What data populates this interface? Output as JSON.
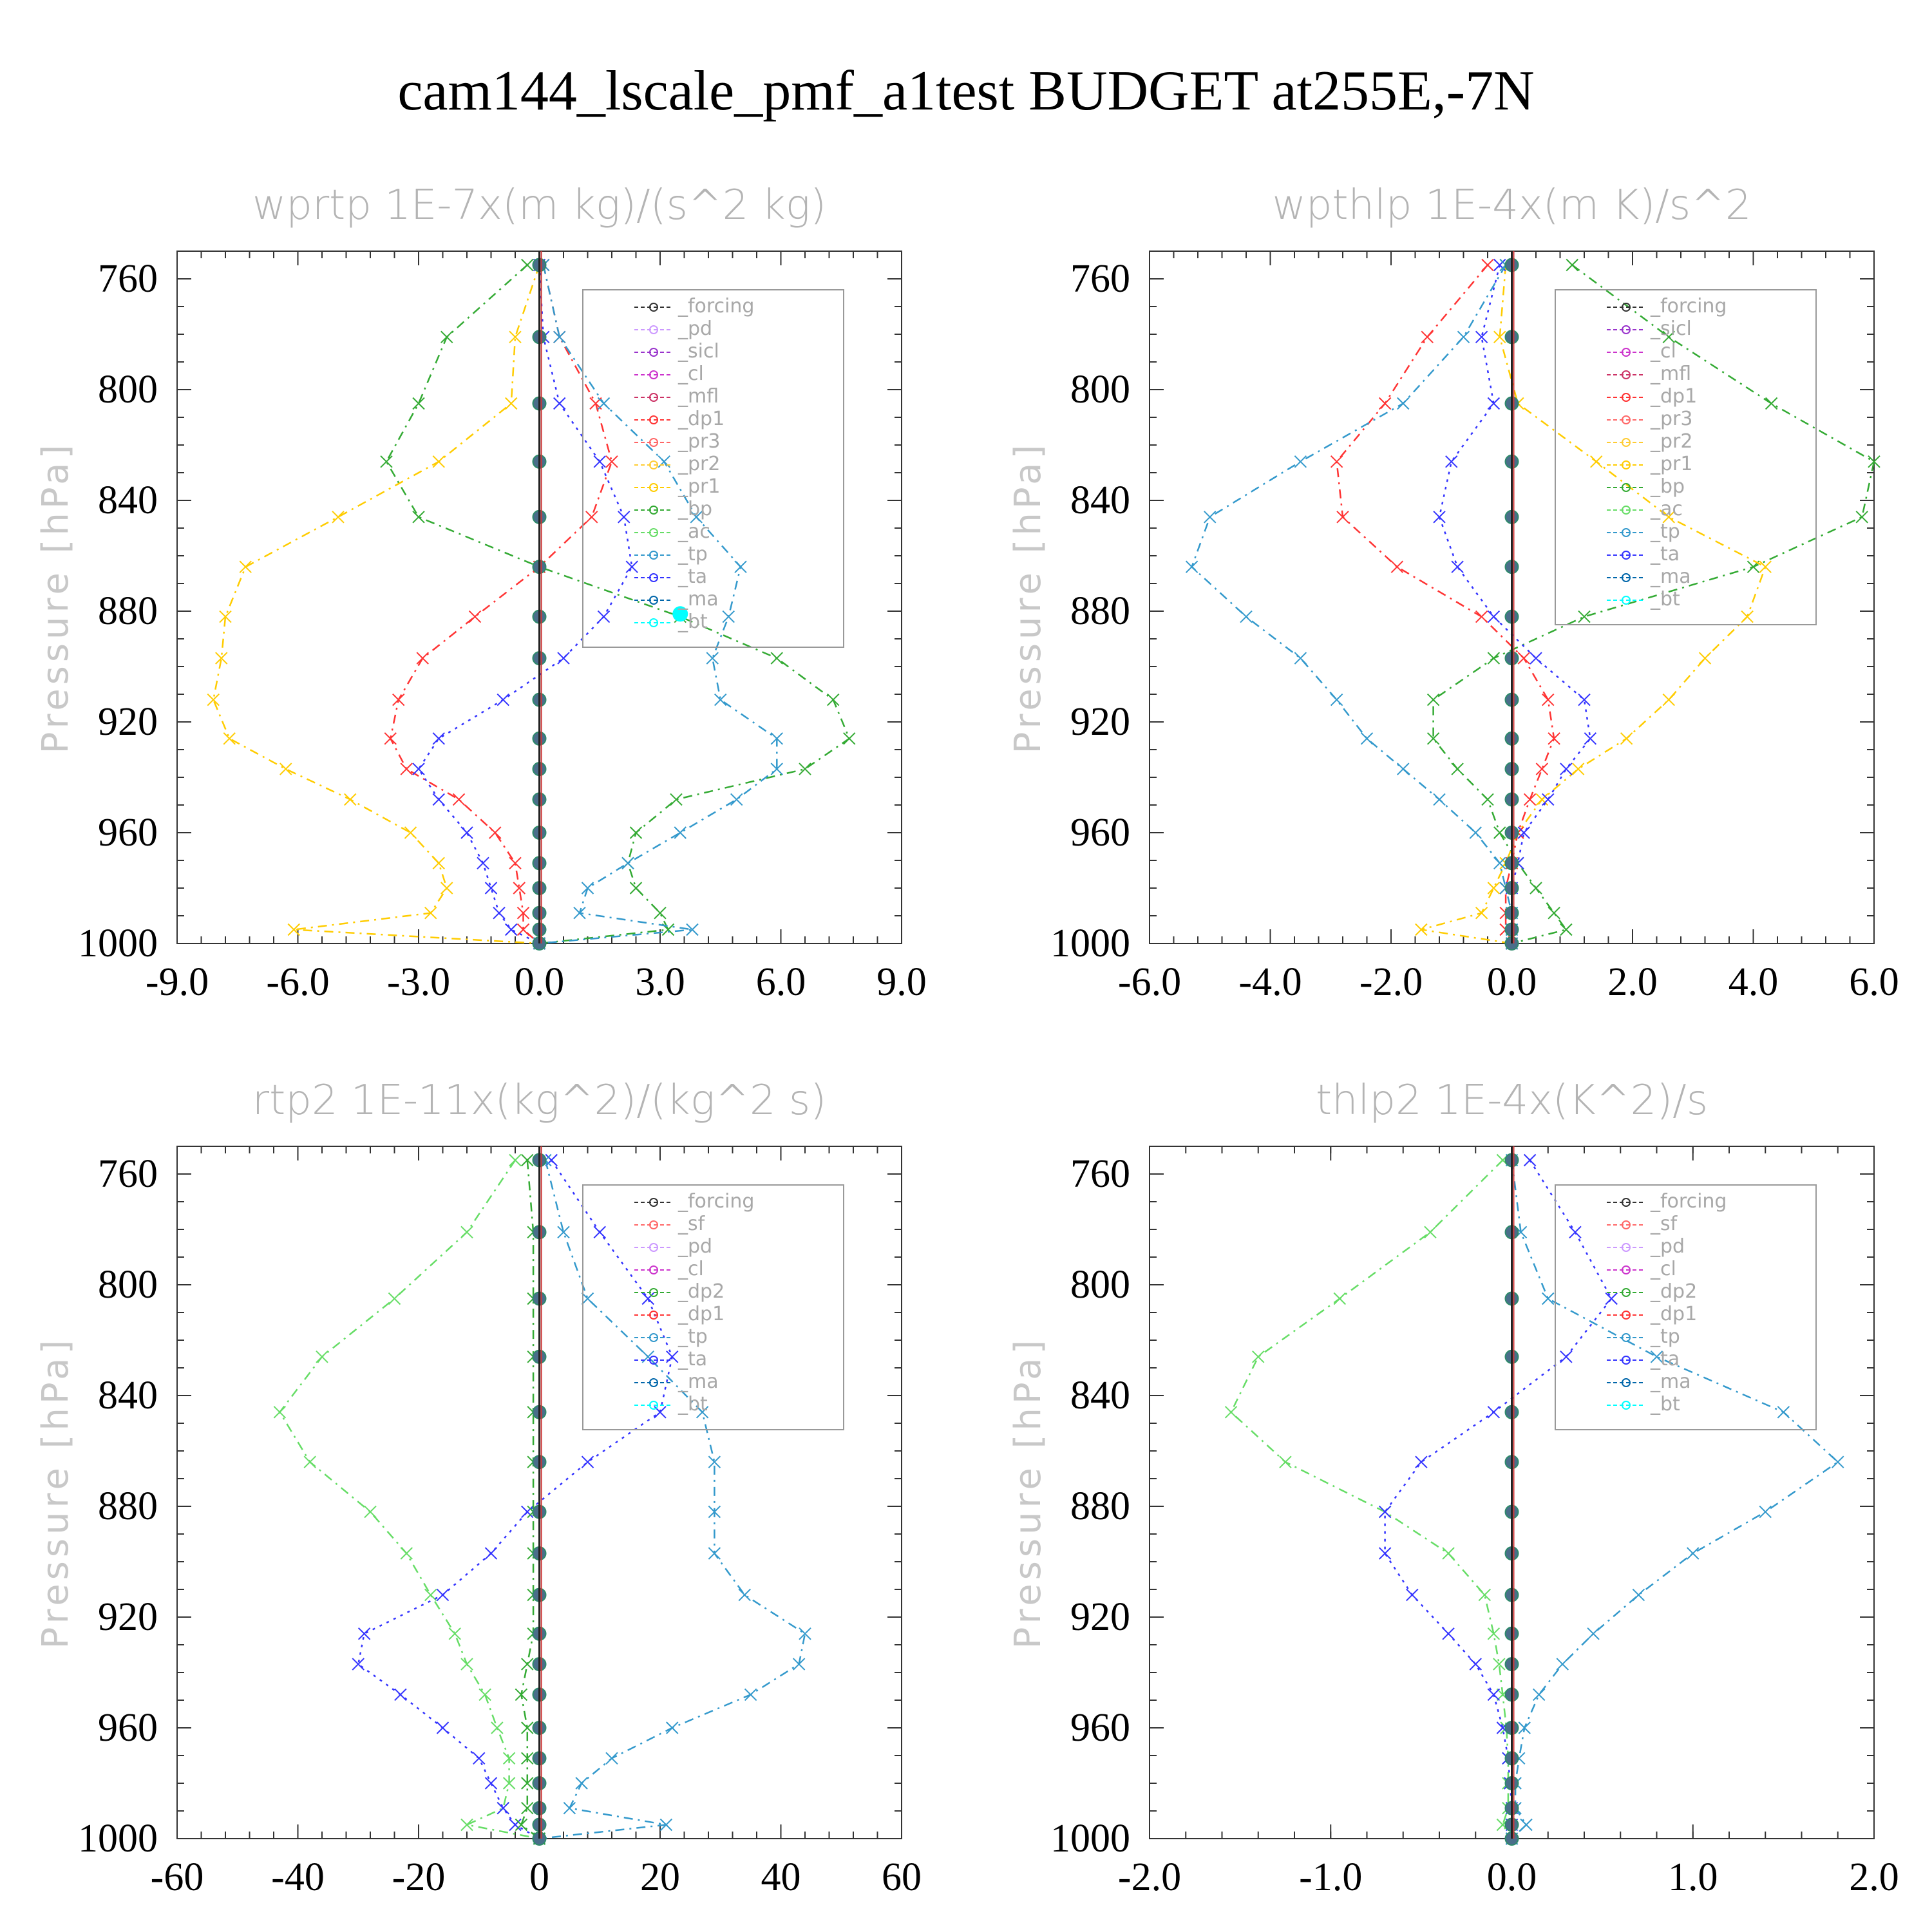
{
  "main_title": "cam144_lscale_pmf_a1test  BUDGET at255E,-7N",
  "colors": {
    "forcing": "#333333",
    "pd": "#cc99ff",
    "sicl": "#9933cc",
    "cl": "#cc33cc",
    "mfl": "#cc3366",
    "dp1": "#ff3333",
    "pr3": "#ff6666",
    "pr2": "#ffcc33",
    "pr1": "#ffcc00",
    "bp": "#33aa33",
    "ac": "#66dd66",
    "tp": "#3399cc",
    "ta": "#3333ff",
    "ma": "#0066aa",
    "bt": "#00ffff",
    "sf": "#ff6666",
    "dp2": "#33aa33"
  },
  "chart_data": [
    {
      "type": "line",
      "title": "wprtp  1E-7x(m kg)/(s^2 kg)",
      "ylabel": "Pressure [hPa]",
      "xlim": [
        -9,
        9
      ],
      "ylim": [
        1000,
        750
      ],
      "xticks": [
        "-9.0",
        "-6.0",
        "-3.0",
        "0.0",
        "3.0",
        "6.0",
        "9.0"
      ],
      "xtick_values": [
        -9,
        -6,
        -3,
        0,
        3,
        6,
        9
      ],
      "yticks": [
        "760",
        "800",
        "840",
        "880",
        "920",
        "960",
        "1000"
      ],
      "ytick_values": [
        760,
        800,
        840,
        880,
        920,
        960,
        1000
      ],
      "y": [
        755,
        781,
        805,
        826,
        846,
        864,
        882,
        897,
        912,
        926,
        937,
        948,
        960,
        971,
        980,
        989,
        995,
        1000
      ],
      "legend": [
        "_forcing",
        "_pd",
        "_sicl",
        "_cl",
        "_mfl",
        "_dp1",
        "_pr3",
        "_pr2",
        "_pr1",
        "_bp",
        "_ac",
        "_tp",
        "_ta",
        "_ma",
        "_bt"
      ],
      "series": [
        {
          "name": "_bp",
          "key": "bp",
          "dash": "14,8,3,8",
          "x": [
            -0.3,
            -2.3,
            -3.0,
            -3.8,
            -3.0,
            0.0,
            3.5,
            5.9,
            7.3,
            7.7,
            6.6,
            3.4,
            2.4,
            2.2,
            2.4,
            3.0,
            3.2,
            0.0
          ]
        },
        {
          "name": "_pr1",
          "key": "pr1",
          "dash": "14,8,3,8",
          "x": [
            0.0,
            -0.6,
            -0.7,
            -2.5,
            -5.0,
            -7.3,
            -7.8,
            -7.9,
            -8.1,
            -7.7,
            -6.3,
            -4.7,
            -3.2,
            -2.5,
            -2.3,
            -2.7,
            -6.1,
            0.0
          ]
        },
        {
          "name": "_dp1",
          "key": "dp1",
          "dash": "14,8,3,8",
          "x": [
            0.1,
            0.5,
            1.4,
            1.8,
            1.3,
            0.0,
            -1.6,
            -2.9,
            -3.5,
            -3.7,
            -3.3,
            -2.0,
            -1.1,
            -0.6,
            -0.5,
            -0.4,
            -0.4,
            0.0
          ]
        },
        {
          "name": "_ta",
          "key": "ta",
          "dash": "4,8",
          "x": [
            0.0,
            0.1,
            0.5,
            1.5,
            2.1,
            2.3,
            1.6,
            0.6,
            -0.9,
            -2.5,
            -3.0,
            -2.5,
            -1.8,
            -1.4,
            -1.2,
            -1.0,
            -0.7,
            0.0
          ]
        },
        {
          "name": "_tp",
          "key": "tp",
          "dash": "14,8,3,8",
          "x": [
            0.1,
            0.5,
            1.6,
            3.1,
            3.9,
            5.0,
            4.7,
            4.3,
            4.5,
            5.9,
            5.9,
            4.9,
            3.5,
            2.2,
            1.2,
            1.0,
            3.8,
            0.0
          ]
        },
        {
          "name": "_forcing",
          "key": "forcing",
          "dash": "none",
          "x": [
            0,
            0,
            0,
            0,
            0,
            0,
            0,
            0,
            0,
            0,
            0,
            0,
            0,
            0,
            0,
            0,
            0,
            0
          ]
        }
      ],
      "bt_marker": {
        "x": 3.5,
        "y": 881
      }
    },
    {
      "type": "line",
      "title": "wpthlp  1E-4x(m K)/s^2",
      "ylabel": "Pressure [hPa]",
      "xlim": [
        -6,
        6
      ],
      "ylim": [
        1000,
        750
      ],
      "xticks": [
        "-6.0",
        "-4.0",
        "-2.0",
        "0.0",
        "2.0",
        "4.0",
        "6.0"
      ],
      "xtick_values": [
        -6,
        -4,
        -2,
        0,
        2,
        4,
        6
      ],
      "yticks": [
        "760",
        "800",
        "840",
        "880",
        "920",
        "960",
        "1000"
      ],
      "ytick_values": [
        760,
        800,
        840,
        880,
        920,
        960,
        1000
      ],
      "y": [
        755,
        781,
        805,
        826,
        846,
        864,
        882,
        897,
        912,
        926,
        937,
        948,
        960,
        971,
        980,
        989,
        995,
        1000
      ],
      "legend": [
        "_forcing",
        "_sicl",
        "_cl",
        "_mfl",
        "_dp1",
        "_pr3",
        "_pr2",
        "_pr1",
        "_bp",
        "_ac",
        "_tp",
        "_ta",
        "_ma",
        "_bt"
      ],
      "series": [
        {
          "name": "_bp",
          "key": "bp",
          "dash": "14,8,3,8",
          "x": [
            1.0,
            2.6,
            4.3,
            6.0,
            5.8,
            4.0,
            1.2,
            -0.3,
            -1.3,
            -1.3,
            -0.9,
            -0.4,
            -0.2,
            0.1,
            0.4,
            0.7,
            0.9,
            0.0
          ]
        },
        {
          "name": "_pr1",
          "key": "pr1",
          "dash": "14,8,3,8",
          "x": [
            -0.1,
            -0.2,
            0.1,
            1.4,
            2.6,
            4.2,
            3.9,
            3.2,
            2.6,
            1.9,
            1.1,
            0.5,
            0.1,
            -0.1,
            -0.3,
            -0.5,
            -1.5,
            0.0
          ]
        },
        {
          "name": "_dp1",
          "key": "dp1",
          "dash": "14,8,3,8",
          "x": [
            -0.4,
            -1.4,
            -2.1,
            -2.9,
            -2.8,
            -1.9,
            -0.5,
            0.2,
            0.6,
            0.7,
            0.5,
            0.3,
            0.1,
            0.0,
            -0.1,
            -0.1,
            -0.1,
            0.0
          ]
        },
        {
          "name": "_ta",
          "key": "ta",
          "dash": "4,8",
          "x": [
            -0.2,
            -0.5,
            -0.3,
            -1.0,
            -1.2,
            -0.9,
            -0.3,
            0.4,
            1.2,
            1.3,
            0.9,
            0.6,
            0.2,
            0.1,
            0.0,
            0.0,
            0.0,
            0.0
          ]
        },
        {
          "name": "_tp",
          "key": "tp",
          "dash": "14,8,3,8",
          "x": [
            -0.1,
            -0.8,
            -1.8,
            -3.5,
            -5.0,
            -5.3,
            -4.4,
            -3.5,
            -2.9,
            -2.4,
            -1.8,
            -1.2,
            -0.6,
            -0.2,
            -0.1,
            0.0,
            0.0,
            0.0
          ]
        },
        {
          "name": "_forcing",
          "key": "forcing",
          "dash": "none",
          "x": [
            0,
            0,
            0,
            0,
            0,
            0,
            0,
            0,
            0,
            0,
            0,
            0,
            0,
            0,
            0,
            0,
            0,
            0
          ]
        }
      ]
    },
    {
      "type": "line",
      "title": "rtp2  1E-11x(kg^2)/(kg^2 s)",
      "ylabel": "Pressure [hPa]",
      "xlim": [
        -60,
        60
      ],
      "ylim": [
        1000,
        750
      ],
      "xticks": [
        "-60",
        "-40",
        "-20",
        "0",
        "20",
        "40",
        "60"
      ],
      "xtick_values": [
        -60,
        -40,
        -20,
        0,
        20,
        40,
        60
      ],
      "yticks": [
        "760",
        "800",
        "840",
        "880",
        "920",
        "960",
        "1000"
      ],
      "ytick_values": [
        760,
        800,
        840,
        880,
        920,
        960,
        1000
      ],
      "y": [
        755,
        781,
        805,
        826,
        846,
        864,
        882,
        897,
        912,
        926,
        937,
        948,
        960,
        971,
        980,
        989,
        995,
        1000
      ],
      "legend": [
        "_forcing",
        "_sf",
        "_pd",
        "_cl",
        "_dp2",
        "_dp1",
        "_tp",
        "_ta",
        "_ma",
        "_bt"
      ],
      "series": [
        {
          "name": "_dp1",
          "key": "ac",
          "dash": "14,8,3,8",
          "x": [
            -4,
            -12,
            -24,
            -36,
            -43,
            -38,
            -28,
            -22,
            -18,
            -14,
            -12,
            -9,
            -7,
            -5,
            -5,
            -6,
            -12,
            0
          ]
        },
        {
          "name": "_ta",
          "key": "ta",
          "dash": "4,8",
          "x": [
            2,
            10,
            18,
            22,
            20,
            8,
            -2,
            -8,
            -16,
            -29,
            -30,
            -23,
            -16,
            -10,
            -8,
            -6,
            -4,
            0
          ]
        },
        {
          "name": "_tp",
          "key": "tp",
          "dash": "14,8,3,8",
          "x": [
            1,
            4,
            8,
            18,
            27,
            29,
            29,
            29,
            34,
            44,
            43,
            35,
            22,
            12,
            7,
            5,
            21,
            0
          ]
        },
        {
          "name": "_dp2",
          "key": "dp2",
          "dash": "14,8,3,8",
          "x": [
            -2,
            -1,
            -1,
            -1,
            -1,
            -1,
            -1,
            -1,
            -1,
            -1,
            -2,
            -3,
            -2,
            -2,
            -2,
            -2,
            -3,
            0
          ]
        },
        {
          "name": "_forcing",
          "key": "dp1",
          "dash": "none",
          "x": [
            0,
            0,
            0,
            0,
            0,
            0,
            0,
            0,
            0,
            0,
            0,
            0,
            0,
            0,
            0,
            0,
            0,
            0
          ]
        }
      ]
    },
    {
      "type": "line",
      "title": "thlp2  1E-4x(K^2)/s",
      "ylabel": "Pressure [hPa]",
      "xlim": [
        -2,
        2
      ],
      "ylim": [
        1000,
        750
      ],
      "xticks": [
        "-2.0",
        "-1.0",
        "0.0",
        "1.0",
        "2.0"
      ],
      "xtick_values": [
        -2,
        -1,
        0,
        1,
        2
      ],
      "yticks": [
        "760",
        "800",
        "840",
        "880",
        "920",
        "960",
        "1000"
      ],
      "ytick_values": [
        760,
        800,
        840,
        880,
        920,
        960,
        1000
      ],
      "y": [
        755,
        781,
        805,
        826,
        846,
        864,
        882,
        897,
        912,
        926,
        937,
        948,
        960,
        971,
        980,
        989,
        995,
        1000
      ],
      "legend": [
        "_forcing",
        "_sf",
        "_pd",
        "_cl",
        "_dp2",
        "_dp1",
        "_tp",
        "_ta",
        "_ma",
        "_bt"
      ],
      "series": [
        {
          "name": "_dp1",
          "key": "ac",
          "dash": "14,8,3,8",
          "x": [
            -0.05,
            -0.45,
            -0.95,
            -1.4,
            -1.55,
            -1.25,
            -0.7,
            -0.35,
            -0.15,
            -0.1,
            -0.07,
            -0.05,
            -0.03,
            -0.02,
            -0.02,
            -0.02,
            -0.05,
            0.0
          ]
        },
        {
          "name": "_ta",
          "key": "ta",
          "dash": "4,8",
          "x": [
            0.1,
            0.35,
            0.55,
            0.3,
            -0.1,
            -0.5,
            -0.7,
            -0.7,
            -0.55,
            -0.35,
            -0.2,
            -0.1,
            -0.05,
            -0.02,
            -0.01,
            0.0,
            0.0,
            0.0
          ]
        },
        {
          "name": "_tp",
          "key": "tp",
          "dash": "14,8,3,8",
          "x": [
            0.0,
            0.05,
            0.2,
            0.8,
            1.5,
            1.8,
            1.4,
            1.0,
            0.7,
            0.45,
            0.28,
            0.15,
            0.07,
            0.04,
            0.02,
            0.02,
            0.08,
            0.0
          ]
        },
        {
          "name": "_forcing",
          "key": "dp1",
          "dash": "none",
          "x": [
            0,
            0,
            0,
            0,
            0,
            0,
            0,
            0,
            0,
            0,
            0,
            0,
            0,
            0,
            0,
            0,
            0,
            0
          ]
        }
      ]
    }
  ]
}
